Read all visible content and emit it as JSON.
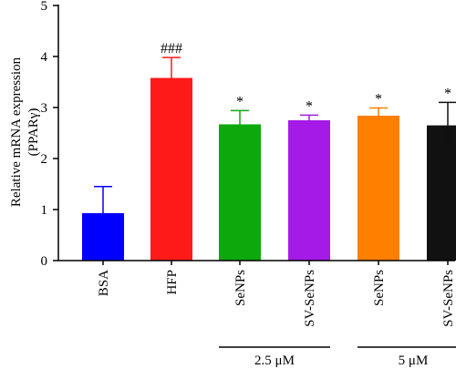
{
  "chart_data": {
    "type": "bar",
    "title": "",
    "ylabel_line1": "Relative mRNA expression",
    "ylabel_line2": "(PPARγ)",
    "xlabel": "",
    "ylim": [
      0,
      5
    ],
    "yticks": [
      "0",
      "1",
      "2",
      "3",
      "4",
      "5"
    ],
    "grid": false,
    "legend": "none",
    "categories": [
      "BSA",
      "HFP",
      "SeNPs",
      "SV-SeNPs",
      "SeNPs",
      "SV-SeNPs"
    ],
    "values": [
      0.93,
      3.58,
      2.67,
      2.75,
      2.84,
      2.65
    ],
    "errors": [
      0.52,
      0.4,
      0.27,
      0.1,
      0.15,
      0.45
    ],
    "colors": [
      "#0000ff",
      "#ff1a1a",
      "#0ca80c",
      "#a51ae6",
      "#ff7f00",
      "#111111"
    ],
    "annotations": [
      "",
      "###",
      "*",
      "*",
      "*",
      "*"
    ],
    "groups": [
      {
        "label": "2.5 μM",
        "from": 2,
        "to": 3
      },
      {
        "label": "5 μM",
        "from": 4,
        "to": 5
      }
    ]
  }
}
